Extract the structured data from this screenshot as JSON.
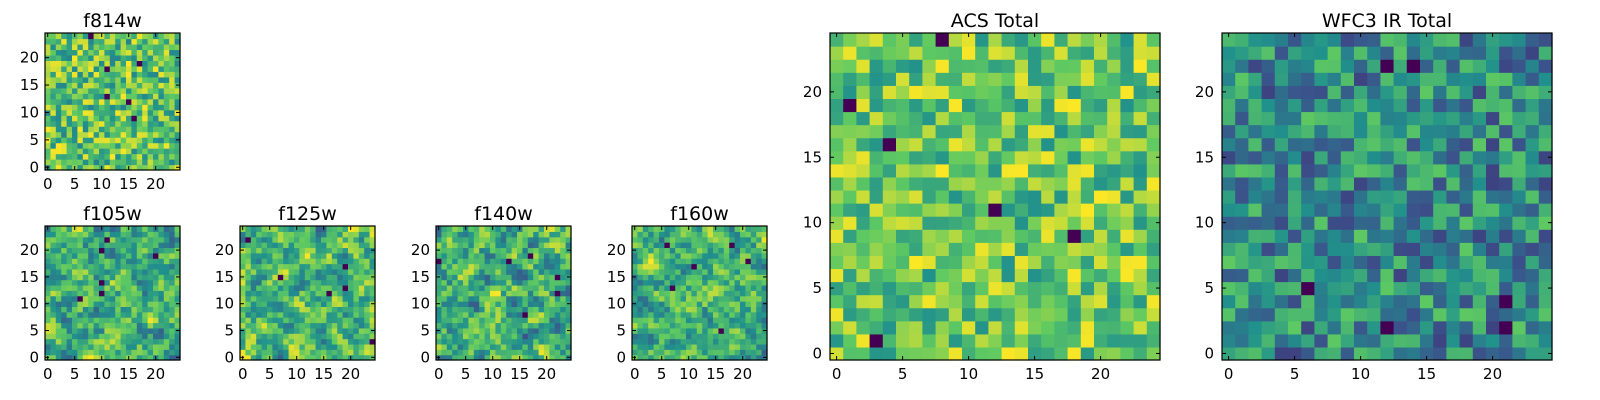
{
  "chart_data": [
    {
      "type": "heatmap",
      "title": "f814w",
      "grid_size": 25,
      "seed": 11,
      "style": "noisy",
      "xticks": [
        "0",
        "5",
        "10",
        "15",
        "20"
      ],
      "yticks": [
        "0",
        "5",
        "10",
        "15",
        "20"
      ],
      "xlim": [
        0,
        24
      ],
      "ylim": [
        0,
        24
      ],
      "colormap": "viridis",
      "value_range": [
        0.45,
        1.0
      ]
    },
    {
      "type": "heatmap",
      "title": "f105w",
      "grid_size": 25,
      "seed": 23,
      "style": "smooth",
      "xticks": [
        "0",
        "5",
        "10",
        "15",
        "20"
      ],
      "yticks": [
        "0",
        "5",
        "10",
        "15",
        "20"
      ],
      "xlim": [
        0,
        24
      ],
      "ylim": [
        0,
        24
      ],
      "colormap": "viridis",
      "value_range": [
        0.3,
        1.0
      ]
    },
    {
      "type": "heatmap",
      "title": "f125w",
      "grid_size": 25,
      "seed": 37,
      "style": "smooth",
      "xticks": [
        "0",
        "5",
        "10",
        "15",
        "20"
      ],
      "yticks": [
        "0",
        "5",
        "10",
        "15",
        "20"
      ],
      "xlim": [
        0,
        24
      ],
      "ylim": [
        0,
        24
      ],
      "colormap": "viridis",
      "value_range": [
        0.3,
        1.0
      ]
    },
    {
      "type": "heatmap",
      "title": "f140w",
      "grid_size": 25,
      "seed": 41,
      "style": "smooth",
      "xticks": [
        "0",
        "5",
        "10",
        "15",
        "20"
      ],
      "yticks": [
        "0",
        "5",
        "10",
        "15",
        "20"
      ],
      "xlim": [
        0,
        24
      ],
      "ylim": [
        0,
        24
      ],
      "colormap": "viridis",
      "value_range": [
        0.25,
        1.0
      ]
    },
    {
      "type": "heatmap",
      "title": "f160w",
      "grid_size": 25,
      "seed": 53,
      "style": "smooth",
      "xticks": [
        "0",
        "5",
        "10",
        "15",
        "20"
      ],
      "yticks": [
        "0",
        "5",
        "10",
        "15",
        "20"
      ],
      "xlim": [
        0,
        24
      ],
      "ylim": [
        0,
        24
      ],
      "colormap": "viridis",
      "value_range": [
        0.3,
        1.0
      ]
    },
    {
      "type": "heatmap",
      "title": "ACS Total",
      "grid_size": 25,
      "seed": 67,
      "style": "bright",
      "xticks": [
        "0",
        "5",
        "10",
        "15",
        "20"
      ],
      "yticks": [
        "0",
        "5",
        "10",
        "15",
        "20"
      ],
      "xlim": [
        0,
        24
      ],
      "ylim": [
        0,
        24
      ],
      "colormap": "viridis",
      "value_range": [
        0.5,
        1.0
      ]
    },
    {
      "type": "heatmap",
      "title": "WFC3 IR Total",
      "grid_size": 25,
      "seed": 79,
      "style": "dark",
      "xticks": [
        "0",
        "5",
        "10",
        "15",
        "20"
      ],
      "yticks": [
        "0",
        "5",
        "10",
        "15",
        "20"
      ],
      "xlim": [
        0,
        24
      ],
      "ylim": [
        0,
        24
      ],
      "colormap": "viridis",
      "value_range": [
        0.2,
        0.75
      ]
    }
  ]
}
